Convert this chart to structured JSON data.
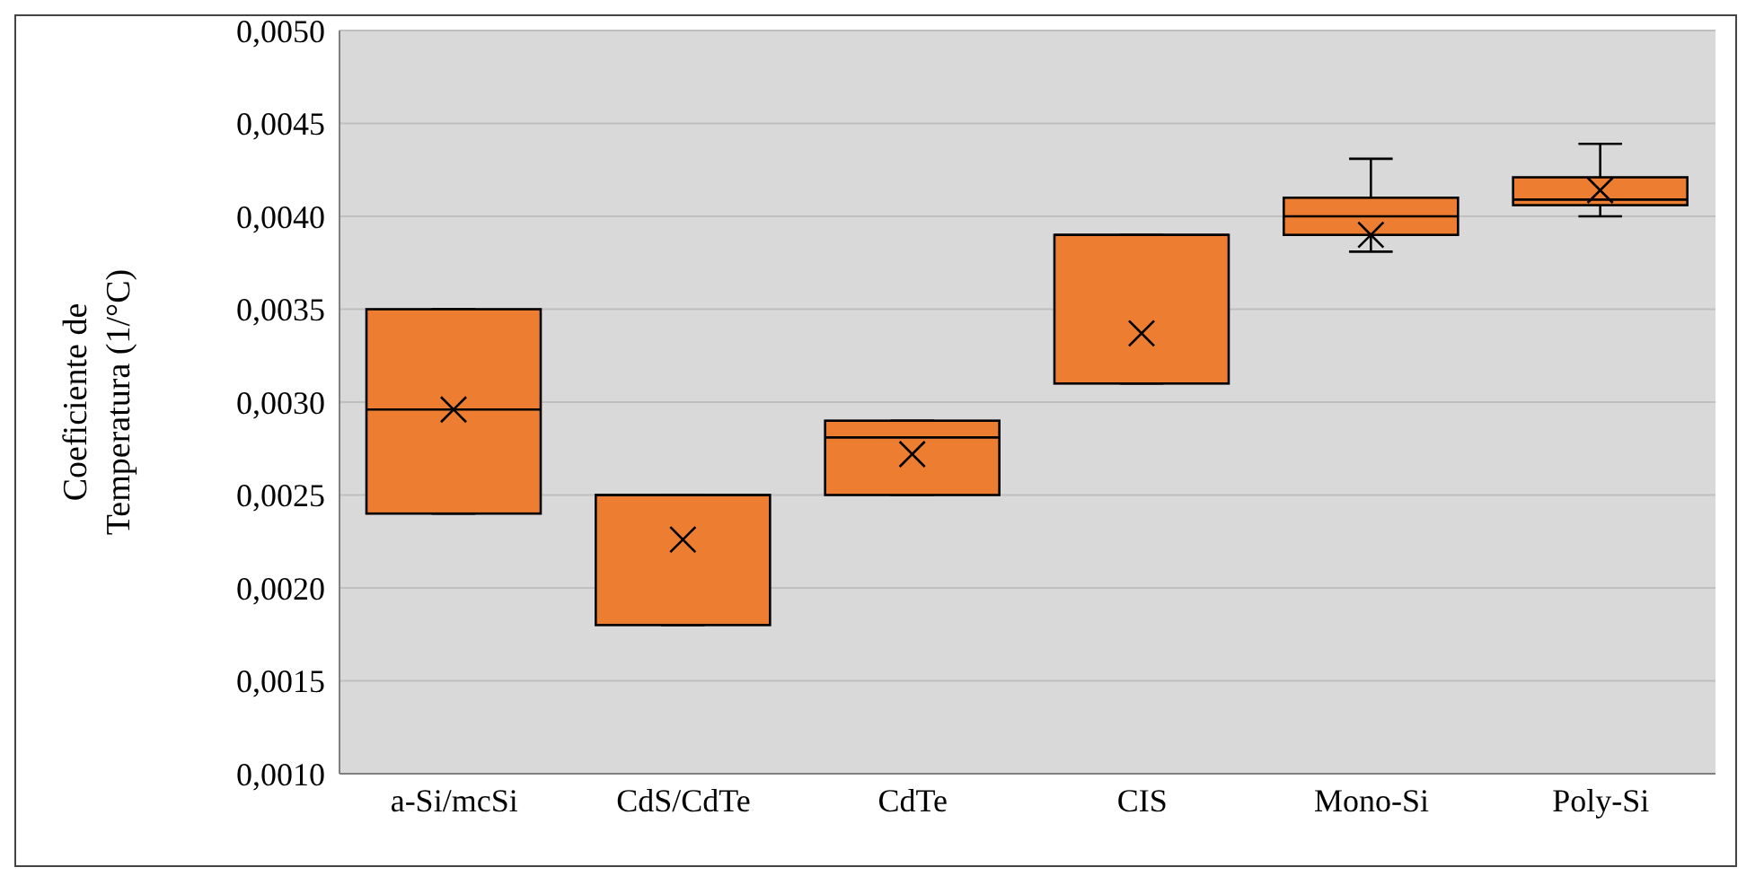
{
  "chart_data": {
    "type": "box",
    "ylabel": "Coeficiente de\nTemperatura (1/°C)",
    "categories": [
      "a-Si/mcSi",
      "CdS/CdTe",
      "CdTe",
      "CIS",
      "Mono-Si",
      "Poly-Si"
    ],
    "color": "#ed7d31",
    "grid": "y",
    "legend": false,
    "boxes": [
      {
        "low": 0.0024,
        "q1": 0.0024,
        "median": 0.00296,
        "q3": 0.0035,
        "high": 0.0035,
        "mean": 0.00296
      },
      {
        "low": 0.0018,
        "q1": 0.0018,
        "median": 0.0025,
        "q3": 0.0025,
        "high": 0.0025,
        "mean": 0.00226
      },
      {
        "low": 0.0025,
        "q1": 0.0025,
        "median": 0.00281,
        "q3": 0.0029,
        "high": 0.0029,
        "mean": 0.00272
      },
      {
        "low": 0.0031,
        "q1": 0.0031,
        "median": 0.0039,
        "q3": 0.0039,
        "high": 0.0039,
        "mean": 0.00337
      },
      {
        "low": 0.00381,
        "q1": 0.0039,
        "median": 0.004,
        "q3": 0.0041,
        "high": 0.00431,
        "mean": 0.0039
      },
      {
        "low": 0.004,
        "q1": 0.00406,
        "median": 0.00409,
        "q3": 0.00421,
        "high": 0.00439,
        "mean": 0.00414
      }
    ],
    "ylim": [
      0.001,
      0.005
    ],
    "yticks": [
      {
        "value": 0.001,
        "label": "0,0010"
      },
      {
        "value": 0.0015,
        "label": "0,0015"
      },
      {
        "value": 0.002,
        "label": "0,0020"
      },
      {
        "value": 0.0025,
        "label": "0,0025"
      },
      {
        "value": 0.003,
        "label": "0,0030"
      },
      {
        "value": 0.0035,
        "label": "0,0035"
      },
      {
        "value": 0.004,
        "label": "0,0040"
      },
      {
        "value": 0.0045,
        "label": "0,0045"
      },
      {
        "value": 0.005,
        "label": "0,0050"
      }
    ]
  }
}
